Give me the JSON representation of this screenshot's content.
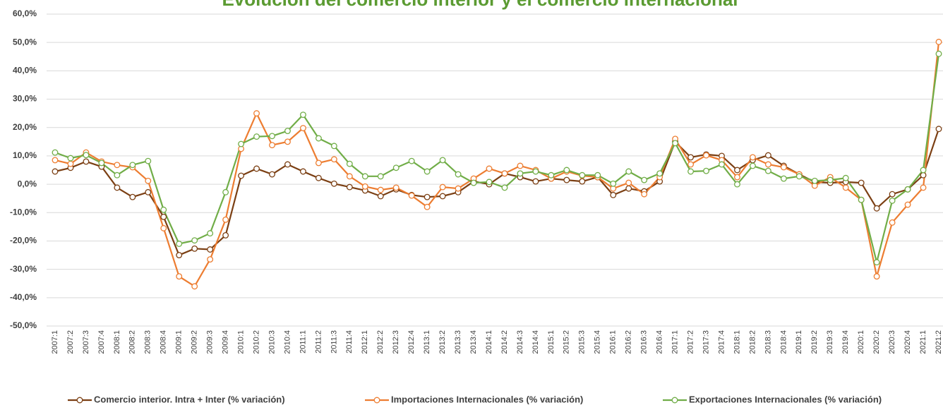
{
  "chart_data": {
    "type": "line",
    "title": "Evolución del comercio interior y el comercio internacional",
    "categories": [
      "2007:1",
      "2007:2",
      "2007:3",
      "2007:4",
      "2008:1",
      "2008:2",
      "2008:3",
      "2008:4",
      "2009:1",
      "2009:2",
      "2009:3",
      "2009:4",
      "2010:1",
      "2010:2",
      "2010:3",
      "2010:4",
      "2011:1",
      "2011:2",
      "2011:3",
      "2011:4",
      "2012:1",
      "2012:2",
      "2012:3",
      "2012:4",
      "2013:1",
      "2013:2",
      "2013:3",
      "2013:4",
      "2014:1",
      "2014:2",
      "2014:3",
      "2014:4",
      "2015:1",
      "2015:2",
      "2015:3",
      "2015:4",
      "2016:1",
      "2016:2",
      "2016:3",
      "2016:4",
      "2017:1",
      "2017:2",
      "2017:3",
      "2017:4",
      "2018:1",
      "2018:2",
      "2018:3",
      "2018:4",
      "2019:1",
      "2019:2",
      "2019:3",
      "2019:4",
      "2020:1",
      "2020:2",
      "2020:3",
      "2020:4",
      "2021:1",
      "2021:2"
    ],
    "series": [
      {
        "name": "Comercio interior. Intra + Inter (% variación)",
        "color": "#7b3f13",
        "values": [
          4.5,
          5.8,
          8.0,
          6.2,
          -1.2,
          -4.5,
          -2.8,
          -11.5,
          -25,
          -22.7,
          -23,
          -18,
          3,
          5.5,
          3.5,
          7,
          4.5,
          2.2,
          0.2,
          -1,
          -2.2,
          -4.2,
          -1.8,
          -3.8,
          -4.5,
          -4.2,
          -2.8,
          1.0,
          0,
          3.8,
          2.5,
          1.0,
          2,
          1.5,
          1.0,
          2.5,
          -3.8,
          -1.5,
          -2.5,
          1.0,
          15,
          9.5,
          10.5,
          10.0,
          5.0,
          8.5,
          10.2,
          6.5,
          3.5,
          0.8,
          0.5,
          0.8,
          0.5,
          -8.5,
          -3.5,
          -1.8,
          3.2,
          19.5
        ]
      },
      {
        "name": "Importaciones Internacionales (% variación)",
        "color": "#ed7d31",
        "values": [
          8.5,
          7.2,
          11.2,
          8.0,
          6.8,
          6.0,
          1.2,
          -15.5,
          -32.5,
          -36,
          -26.5,
          -12.5,
          12.5,
          25,
          13.8,
          15,
          19.8,
          7.5,
          8.8,
          2.8,
          -0.8,
          -2.0,
          -1.2,
          -4.0,
          -8,
          -1.0,
          -1.5,
          2.0,
          5.5,
          3.8,
          6.5,
          5.0,
          2.0,
          4.5,
          3.0,
          2.5,
          -1.5,
          0.5,
          -3.5,
          2.5,
          16,
          7.0,
          10.2,
          8.5,
          2.5,
          9.5,
          7.0,
          6.0,
          3.5,
          -0.5,
          2.5,
          -1.2,
          -5.5,
          -32.5,
          -13.5,
          -7.2,
          -1.2,
          50.2
        ]
      },
      {
        "name": "Exportaciones Internacionales (% variación)",
        "color": "#70ad47",
        "values": [
          11.2,
          9.2,
          10.3,
          7.5,
          3.2,
          6.8,
          8.2,
          -9.0,
          -21,
          -19.8,
          -17.3,
          -2.8,
          14.2,
          16.8,
          17,
          18.8,
          24.5,
          16.2,
          13.5,
          7.2,
          2.8,
          2.8,
          5.8,
          8.2,
          4.5,
          8.5,
          3.5,
          0.5,
          0.8,
          -1.2,
          3.8,
          4.5,
          3.2,
          5.0,
          3.2,
          3.2,
          0.2,
          4.5,
          1.5,
          3.8,
          14.5,
          4.5,
          4.7,
          7.0,
          0,
          6.5,
          4.7,
          2.0,
          2.8,
          1.2,
          1.5,
          2.2,
          -5.5,
          -27.5,
          -5.8,
          -1.8,
          5.0,
          46
        ]
      }
    ],
    "ylim": [
      -50,
      60
    ],
    "yticks": [
      {
        "value": -50,
        "label": "-50,0%"
      },
      {
        "value": -40,
        "label": "-40,0%"
      },
      {
        "value": -30,
        "label": "-30,0%"
      },
      {
        "value": -20,
        "label": "-20,0%"
      },
      {
        "value": -10,
        "label": "-10,0%"
      },
      {
        "value": 0,
        "label": "0,0%"
      },
      {
        "value": 10,
        "label": "10,0%"
      },
      {
        "value": 20,
        "label": "20,0%"
      },
      {
        "value": 30,
        "label": "30,0%"
      },
      {
        "value": 40,
        "label": "40,0%"
      },
      {
        "value": 50,
        "label": "50,0%"
      },
      {
        "value": 60,
        "label": "60,0%"
      }
    ],
    "grid": true,
    "legend": "bottom"
  }
}
